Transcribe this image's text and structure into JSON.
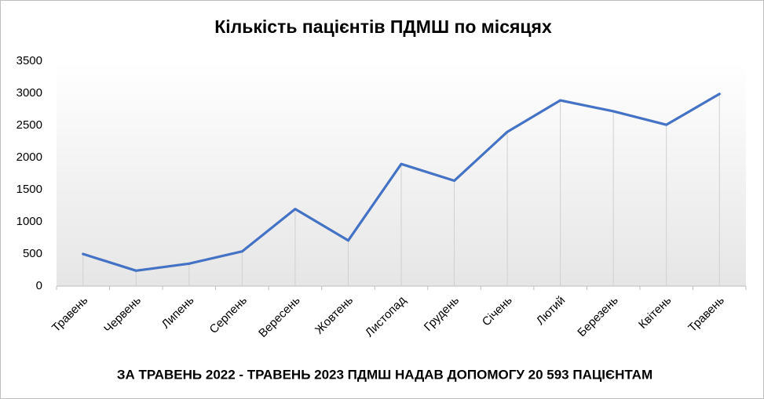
{
  "chart_data": {
    "type": "line",
    "title": "Кількість пацієнтів ПДМШ по місяцях",
    "annotation": "ЗА ТРАВЕНЬ 2022 - ТРАВЕНЬ 2023 ПДМШ НАДАВ ДОПОМОГУ 20 593 ПАЦІЄНТАМ",
    "categories": [
      "Травень",
      "Червень",
      "Липень",
      "Серпень",
      "Вересень",
      "Жовтень",
      "Листопад",
      "Грудень",
      "Січень",
      "Лютий",
      "Березень",
      "Квітень",
      "Травень"
    ],
    "values": [
      500,
      240,
      350,
      540,
      1200,
      710,
      1900,
      1640,
      2400,
      2890,
      2720,
      2510,
      2990
    ],
    "color": "#4472c4",
    "ylim": [
      0,
      3500
    ],
    "yticks": [
      0,
      500,
      1000,
      1500,
      2000,
      2500,
      3000,
      3500
    ],
    "drop_lines": true
  }
}
